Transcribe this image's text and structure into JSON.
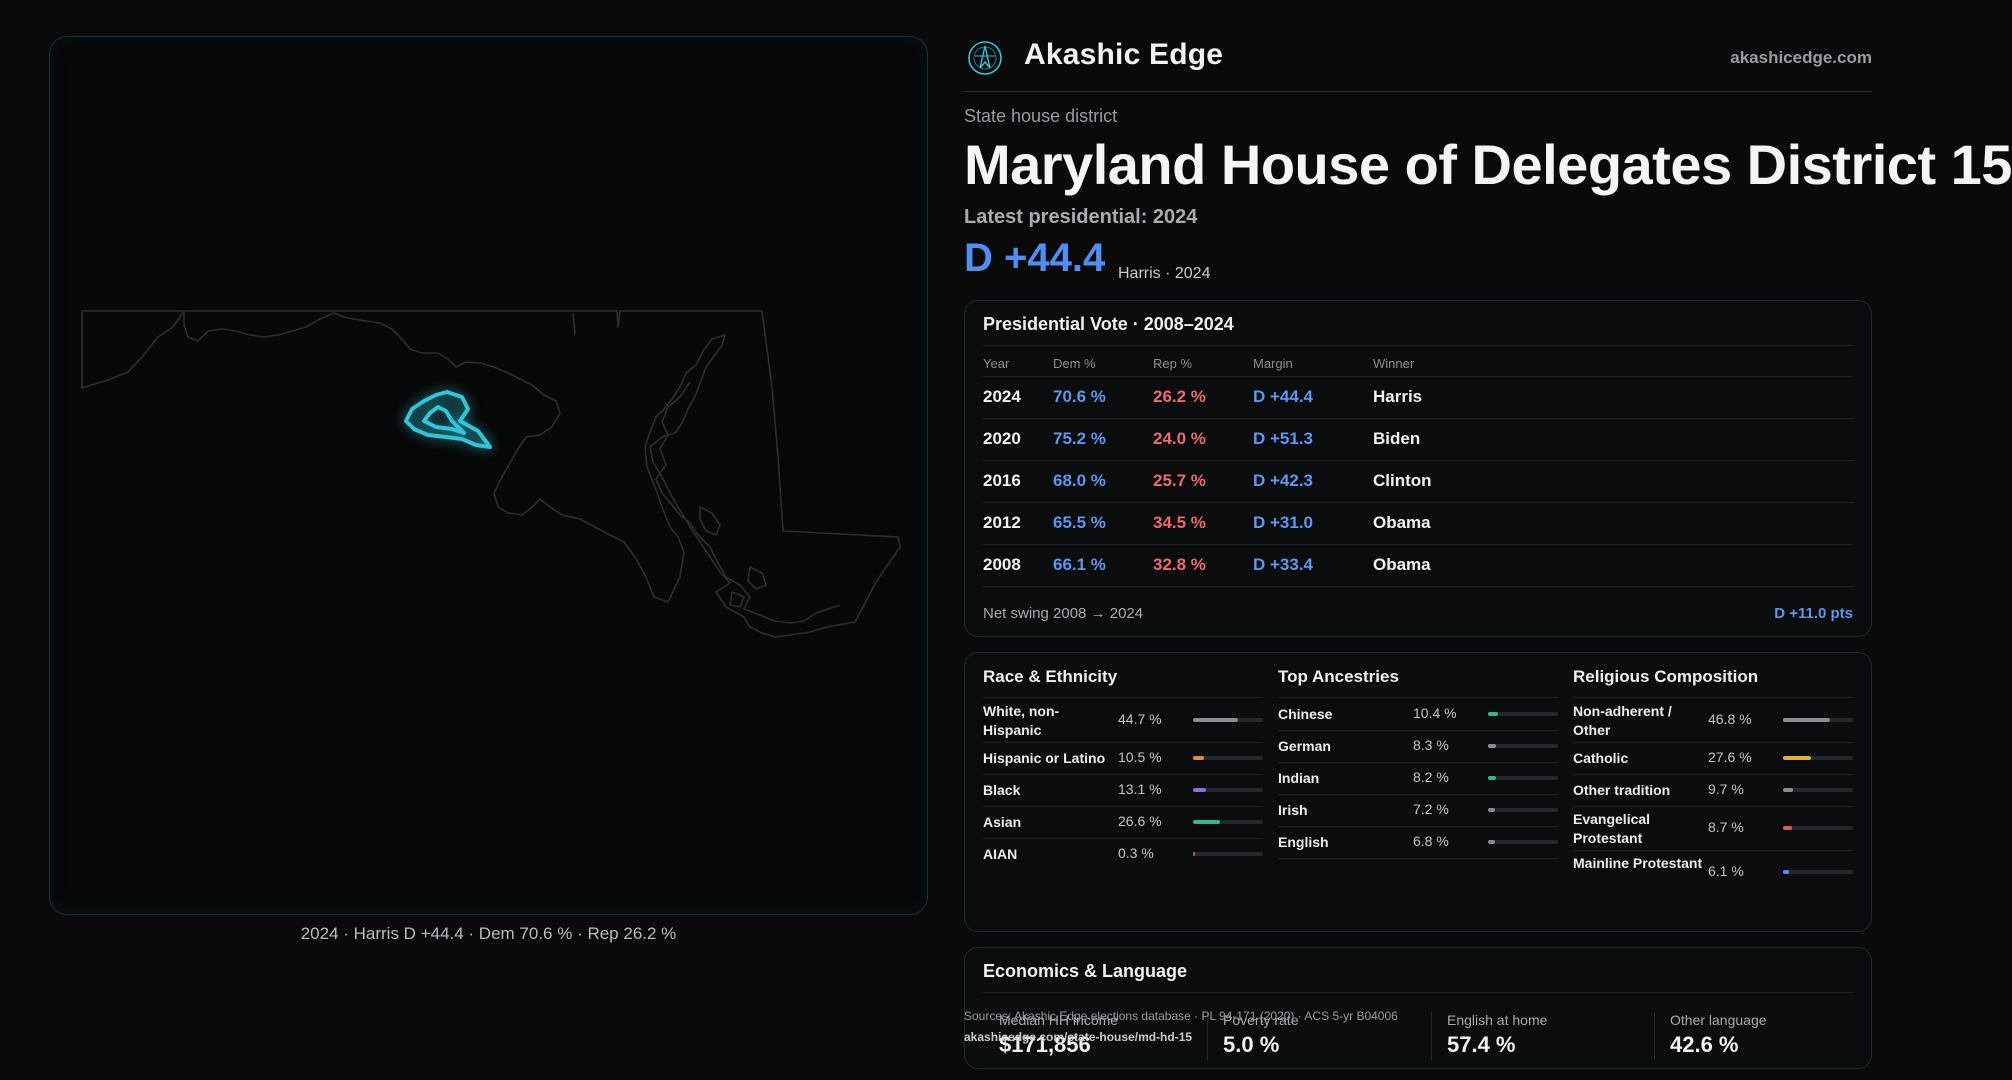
{
  "map": {
    "caption": "2024 · Harris D +44.4 · Dem 70.6 % · Rep 26.2 %"
  },
  "brand": {
    "name": "Akashic Edge",
    "url": "akashicedge.com",
    "logo_icon": "compass-logo-icon",
    "accent": "#2fc6d8"
  },
  "header": {
    "kicker": "State house district",
    "title": "Maryland House of Delegates District 15",
    "latest": "Latest presidential: 2024",
    "margin": "D +44.4",
    "margin_sub": "Harris · 2024"
  },
  "presidential": {
    "title": "Presidential Vote · 2008–2024",
    "columns": [
      "Year",
      "Dem %",
      "Rep %",
      "Margin",
      "Winner"
    ],
    "rows": [
      {
        "year": "2024",
        "dem": "70.6 %",
        "rep": "26.2 %",
        "margin": "D +44.4",
        "winner": "Harris"
      },
      {
        "year": "2020",
        "dem": "75.2 %",
        "rep": "24.0 %",
        "margin": "D +51.3",
        "winner": "Biden"
      },
      {
        "year": "2016",
        "dem": "68.0 %",
        "rep": "25.7 %",
        "margin": "D +42.3",
        "winner": "Clinton"
      },
      {
        "year": "2012",
        "dem": "65.5 %",
        "rep": "34.5 %",
        "margin": "D +31.0",
        "winner": "Obama"
      },
      {
        "year": "2008",
        "dem": "66.1 %",
        "rep": "32.8 %",
        "margin": "D +33.4",
        "winner": "Obama"
      }
    ],
    "net_label": "Net swing 2008 → 2024",
    "net_value": "D +11.0 pts"
  },
  "race": {
    "title": "Race & Ethnicity",
    "rows": [
      {
        "label": "White, non-Hispanic",
        "value": "44.7 %",
        "fraction": 0.447,
        "color": "#8a8d93"
      },
      {
        "label": "Hispanic or Latino",
        "value": "10.5 %",
        "fraction": 0.105,
        "color": "#e0902a"
      },
      {
        "label": "Black",
        "value": "13.1 %",
        "fraction": 0.131,
        "color": "#8f6fe0"
      },
      {
        "label": "Asian",
        "value": "26.6 %",
        "fraction": 0.266,
        "color": "#2fb88a"
      },
      {
        "label": "AIAN",
        "value": "0.3 %",
        "fraction": 0.003,
        "color": "#c0603a"
      }
    ]
  },
  "ancestry": {
    "title": "Top Ancestries",
    "rows": [
      {
        "label": "Chinese",
        "value": "10.4 %",
        "fraction": 0.104,
        "color": "#2fb88a"
      },
      {
        "label": "German",
        "value": "8.3 %",
        "fraction": 0.083,
        "color": "#8a8d93"
      },
      {
        "label": "Indian",
        "value": "8.2 %",
        "fraction": 0.082,
        "color": "#2fb88a"
      },
      {
        "label": "Irish",
        "value": "7.2 %",
        "fraction": 0.072,
        "color": "#8a8d93"
      },
      {
        "label": "English",
        "value": "6.8 %",
        "fraction": 0.068,
        "color": "#8a8d93"
      }
    ]
  },
  "religion": {
    "title": "Religious Composition",
    "rows": [
      {
        "label": "Non-adherent / Other",
        "value": "46.8 %",
        "fraction": 0.468,
        "color": "#8a8d93"
      },
      {
        "label": "Catholic",
        "value": "27.6 %",
        "fraction": 0.276,
        "color": "#e8b02a"
      },
      {
        "label": "Other tradition",
        "value": "9.7 %",
        "fraction": 0.097,
        "color": "#8a8d93"
      },
      {
        "label": "Evangelical Protestant",
        "value": "8.7 %",
        "fraction": 0.087,
        "color": "#e05a5a"
      },
      {
        "label": "Mainline Protestant",
        "value": "6.1 %",
        "fraction": 0.061,
        "color": "#4d8ff2"
      }
    ]
  },
  "economics": {
    "title": "Economics & Language",
    "tiles": [
      {
        "label": "Median HH income",
        "value": "$171,856"
      },
      {
        "label": "Poverty rate",
        "value": "5.0 %"
      },
      {
        "label": "English at home",
        "value": "57.4 %"
      },
      {
        "label": "Other language",
        "value": "42.6 %"
      }
    ]
  },
  "footer": {
    "sources": "Sources: Akashic Edge elections database · PL 94-171 (2020) · ACS 5-yr B04006",
    "url": "akashicedge.com/state-house/md-hd-15"
  }
}
